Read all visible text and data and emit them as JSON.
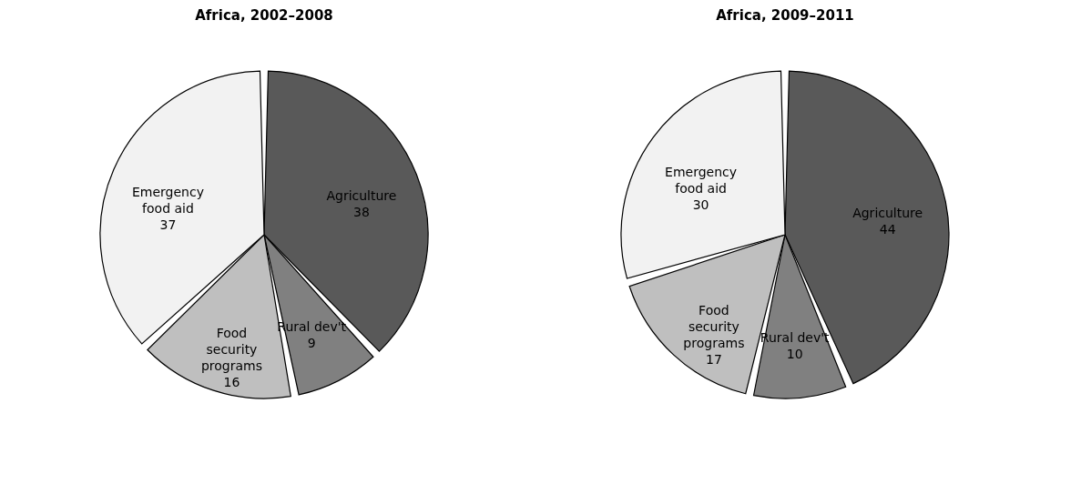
{
  "chart_data": [
    {
      "type": "pie",
      "title": "Africa, 2002–2008",
      "categories": [
        "Agriculture",
        "Rural dev't",
        "Food security programs",
        "Emergency food aid"
      ],
      "values": [
        38,
        9,
        16,
        37
      ],
      "colors": [
        "#595959",
        "#808080",
        "#bfbfbf",
        "#f2f2f2"
      ],
      "data_labels": true
    },
    {
      "type": "pie",
      "title": "Africa, 2009–2011",
      "categories": [
        "Agriculture",
        "Rural dev't",
        "Food security programs",
        "Emergency food aid"
      ],
      "values": [
        44,
        10,
        17,
        30
      ],
      "colors": [
        "#595959",
        "#808080",
        "#bfbfbf",
        "#f2f2f2"
      ],
      "data_labels": true
    }
  ]
}
